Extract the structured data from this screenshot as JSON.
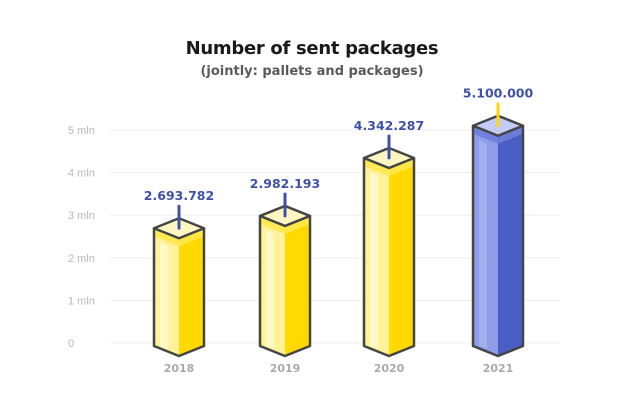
{
  "chart_data": {
    "type": "bar",
    "title": "Number of sent packages",
    "subtitle": "(jointly: pallets and packages)",
    "categories": [
      "2018",
      "2019",
      "2020",
      "2021"
    ],
    "values": [
      2693782,
      2982193,
      4342287,
      5100000
    ],
    "data_labels": [
      "2.693.782",
      "2.982.193",
      "4.342.287",
      "5.100.000"
    ],
    "yticks": [
      0,
      1000000,
      2000000,
      3000000,
      4000000,
      5000000
    ],
    "ytick_labels": [
      "0",
      "1 mln",
      "2 mln",
      "3 mln",
      "4 mln",
      "5 mln"
    ],
    "ylim": [
      0,
      5000000
    ],
    "grid": true,
    "highlight_index": 3
  },
  "colors": {
    "bar_front": "#ffd900",
    "bar_side": "#fff29a",
    "bar_top": "#fff7c2",
    "bar_band": "#ffe84d",
    "highlight_front": "#4b5ec4",
    "highlight_side": "#8f9de8",
    "highlight_top": "#c3cbf6",
    "highlight_band": "#6d7fdc",
    "outline": "#454545",
    "label": "#3f51a8",
    "label_stick_default": "#3f51a8",
    "label_stick_highlight": "#ffd900",
    "grid": "#eeeeee"
  }
}
